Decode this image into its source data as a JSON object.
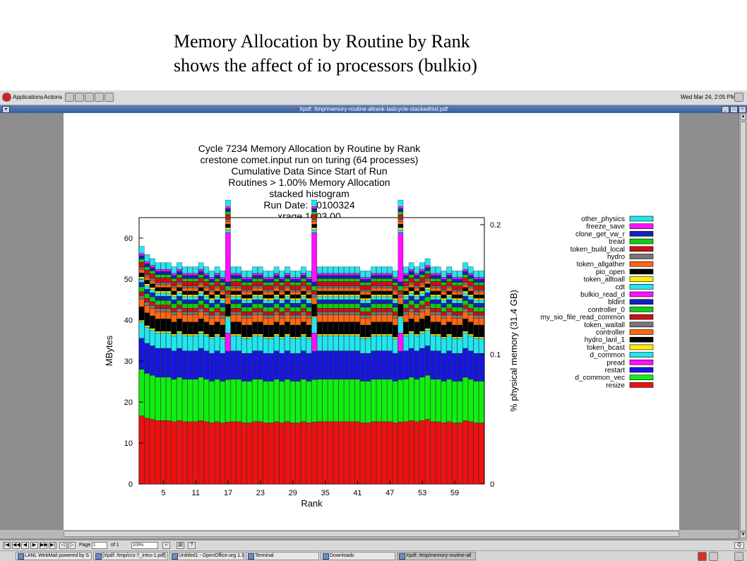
{
  "slide": {
    "title_line1": "Memory Allocation by Routine by Rank",
    "title_line2": "shows the affect of io processors (bulkio)"
  },
  "topbar": {
    "applications": "Applications",
    "actions": "Actions",
    "clock": "Wed Mar 24,  2:05 PM"
  },
  "window": {
    "title": "Xpdf: /tmp/memory-routine-allrank-lastcycle-stackedhist.pdf"
  },
  "toolbar": {
    "page_label": "Page",
    "page_value": "1",
    "of_label": "of 1",
    "zoom_value": "200%",
    "help_label": "?"
  },
  "taskbar": {
    "tasks": [
      "LANL WebMail powered by S",
      "[Xpdf: /tmp/ccs-7_intro-1.pdf]",
      "Untitled1 - OpenOffice.org 1.1",
      "Terminal",
      "Downloads",
      "Xpdf: /tmp/memory-routine-all"
    ]
  },
  "chart_data": {
    "type": "bar",
    "stacked": true,
    "title_lines": [
      "Cycle 7234 Memory Allocation by Routine by Rank",
      "crestone comet.input run on turing (64 processes)",
      "Cumulative Data Since Start of Run",
      "Routines > 1.00% Memory Allocation",
      "stacked histogram",
      "Run Date: 20100324",
      "xrage.1003.00"
    ],
    "xlabel": "Rank",
    "ylabel": "MBytes",
    "y2label": "% physical memory (31.4 GB)",
    "ylim": [
      0,
      65
    ],
    "xlim": [
      0,
      64
    ],
    "y2lim": [
      0,
      0.2
    ],
    "xticks": [
      "5",
      "11",
      "17",
      "23",
      "29",
      "35",
      "41",
      "47",
      "53",
      "59"
    ],
    "yticks": [
      "0",
      "10",
      "20",
      "30",
      "40",
      "50",
      "60"
    ],
    "y2ticks": [
      "0",
      "0.1",
      "0.2"
    ],
    "io_ranks": [
      16,
      32,
      48
    ],
    "series": [
      {
        "name": "resize",
        "color": "#ee1111",
        "value": 12.3
      },
      {
        "name": "d_common_vec",
        "color": "#11ee11",
        "value": 8.4
      },
      {
        "name": "restart",
        "color": "#1616dd",
        "value": 5.6
      },
      {
        "name": "pread",
        "color": "#ff11ff",
        "value": 0.0
      },
      {
        "name": "d_common",
        "color": "#22e6ee",
        "value": 3.0
      },
      {
        "name": "token_bcast",
        "color": "#ffee00",
        "value": 0.3
      },
      {
        "name": "hydro_lanl_1",
        "color": "#000000",
        "value": 2.4
      },
      {
        "name": "controller",
        "color": "#ff6611",
        "value": 1.4
      },
      {
        "name": "token_waitall",
        "color": "#777777",
        "value": 0.6
      },
      {
        "name": "my_sio_file_read_common",
        "color": "#cc1111",
        "value": 0.7
      },
      {
        "name": "controller_0",
        "color": "#11cc11",
        "value": 0.9
      },
      {
        "name": "bldint",
        "color": "#1122bb",
        "value": 0.8
      },
      {
        "name": "bulkio_read_d",
        "color": "#ff11ff",
        "value": 0.0
      },
      {
        "name": "cdt",
        "color": "#22e6ee",
        "value": 0.6
      },
      {
        "name": "token_alltoall",
        "color": "#ffee00",
        "value": 0.4
      },
      {
        "name": "pio_open",
        "color": "#000000",
        "value": 0.7
      },
      {
        "name": "token_allgather",
        "color": "#ff6611",
        "value": 0.6
      },
      {
        "name": "hydro",
        "color": "#777777",
        "value": 0.4
      },
      {
        "name": "token_build_local",
        "color": "#cc1111",
        "value": 0.9
      },
      {
        "name": "tread",
        "color": "#11cc11",
        "value": 0.6
      },
      {
        "name": "clone_get_vw_r",
        "color": "#1122bb",
        "value": 0.6
      },
      {
        "name": "freeze_save",
        "color": "#ff11ff",
        "value": 0.4
      },
      {
        "name": "other_physics",
        "color": "#22e6ee",
        "value": 1.3
      }
    ],
    "legend_order": [
      "other_physics",
      "freeze_save",
      "clone_get_vw_r",
      "tread",
      "token_build_local",
      "hydro",
      "token_allgather",
      "pio_open",
      "token_alltoall",
      "cdt",
      "bulkio_read_d",
      "bldint",
      "controller_0",
      "my_sio_file_read_common",
      "token_waitall",
      "controller",
      "hydro_lanl_1",
      "token_bcast",
      "d_common",
      "pread",
      "restart",
      "d_common_vec",
      "resize"
    ],
    "rank_totals": [
      58,
      56,
      55,
      54,
      54,
      54,
      53,
      54,
      53,
      53,
      53,
      54,
      53,
      52,
      53,
      52,
      64.5,
      53,
      53,
      52,
      52,
      53,
      53,
      52,
      52,
      53,
      52,
      53,
      52,
      52,
      53,
      52,
      65,
      53,
      53,
      53,
      53,
      53,
      53,
      53,
      53,
      52,
      52,
      53,
      53,
      53,
      53,
      52,
      65.5,
      53,
      54,
      53,
      54,
      55,
      53,
      53,
      52,
      53,
      52,
      52,
      54,
      53,
      52,
      52
    ]
  }
}
